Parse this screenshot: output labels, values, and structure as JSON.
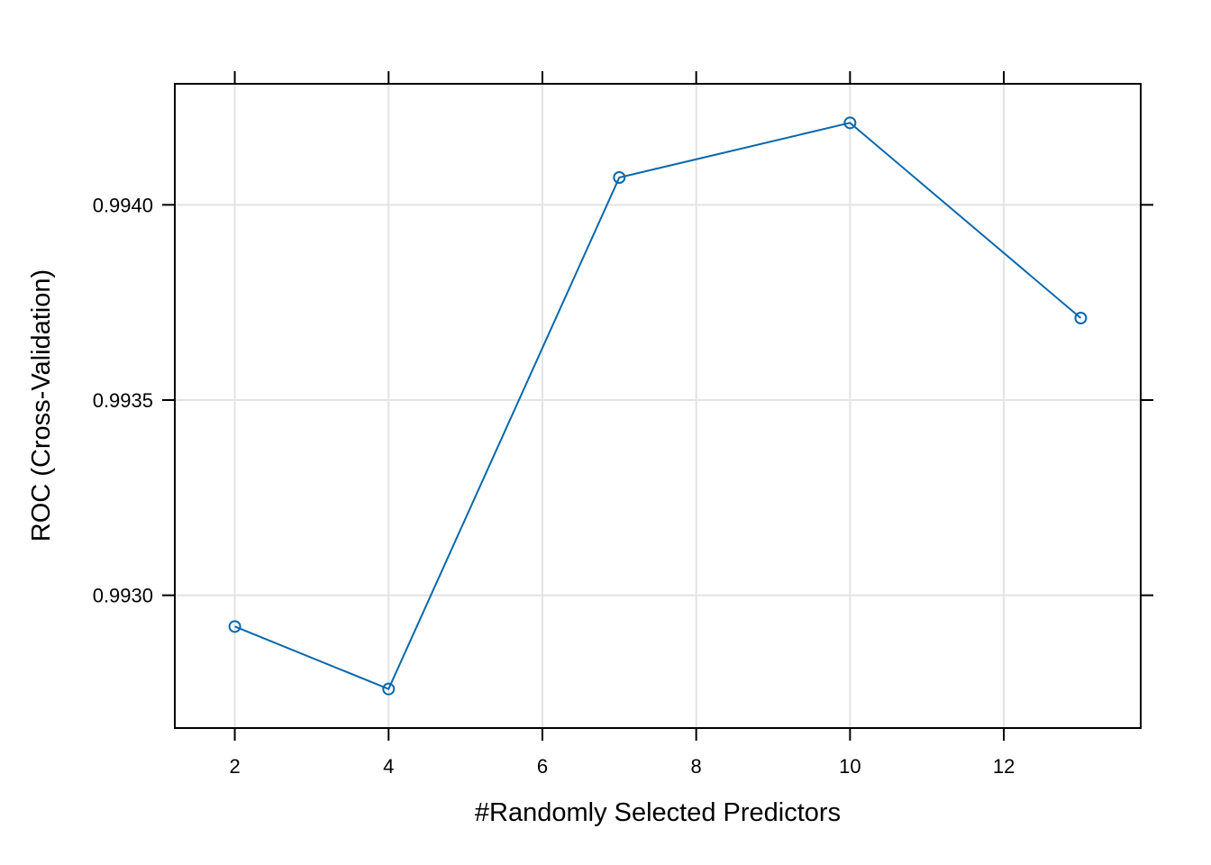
{
  "chart_data": {
    "type": "line",
    "title": "",
    "xlabel": "#Randomly Selected Predictors",
    "ylabel": "ROC (Cross-Validation)",
    "x": [
      2,
      4,
      7,
      10,
      13
    ],
    "series": [
      {
        "values": [
          0.99292,
          0.99276,
          0.99407,
          0.99421,
          0.99371
        ],
        "color": "#0868ac",
        "marker": "open-circle"
      }
    ],
    "xlim": [
      1.22,
      13.78
    ],
    "ylim": [
      0.99266,
      0.99431
    ],
    "xticks": [
      2,
      4,
      6,
      8,
      10,
      12
    ],
    "xtick_labels": [
      "2",
      "4",
      "6",
      "8",
      "10",
      "12"
    ],
    "yticks": [
      0.993,
      0.9935,
      0.994
    ],
    "ytick_labels": [
      "0.9930",
      "0.9935",
      "0.9940"
    ],
    "grid": true,
    "legend": "none"
  }
}
